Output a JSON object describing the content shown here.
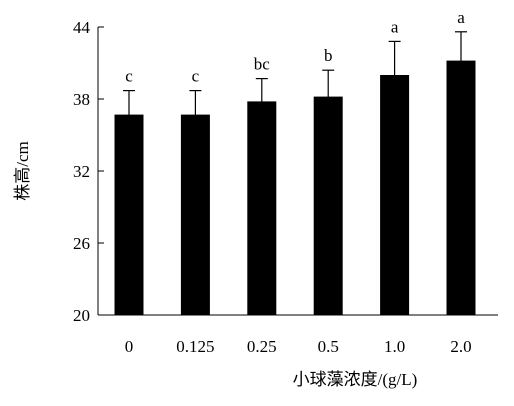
{
  "chart_data": {
    "type": "bar",
    "title": "",
    "xlabel": "小球藻浓度/(g/L)",
    "ylabel": "株高/cm",
    "categories": [
      "0",
      "0.125",
      "0.25",
      "0.5",
      "1.0",
      "2.0"
    ],
    "values": [
      36.7,
      36.7,
      37.8,
      38.2,
      40.0,
      41.2
    ],
    "errors": [
      2.0,
      2.0,
      1.9,
      2.2,
      2.8,
      2.4
    ],
    "significance": [
      "c",
      "c",
      "bc",
      "b",
      "a",
      "a"
    ],
    "ylim": [
      20,
      44
    ],
    "yticks": [
      "20",
      "26",
      "32",
      "38",
      "44"
    ],
    "bar_color": "#000000",
    "grid": false,
    "legend": "none"
  }
}
